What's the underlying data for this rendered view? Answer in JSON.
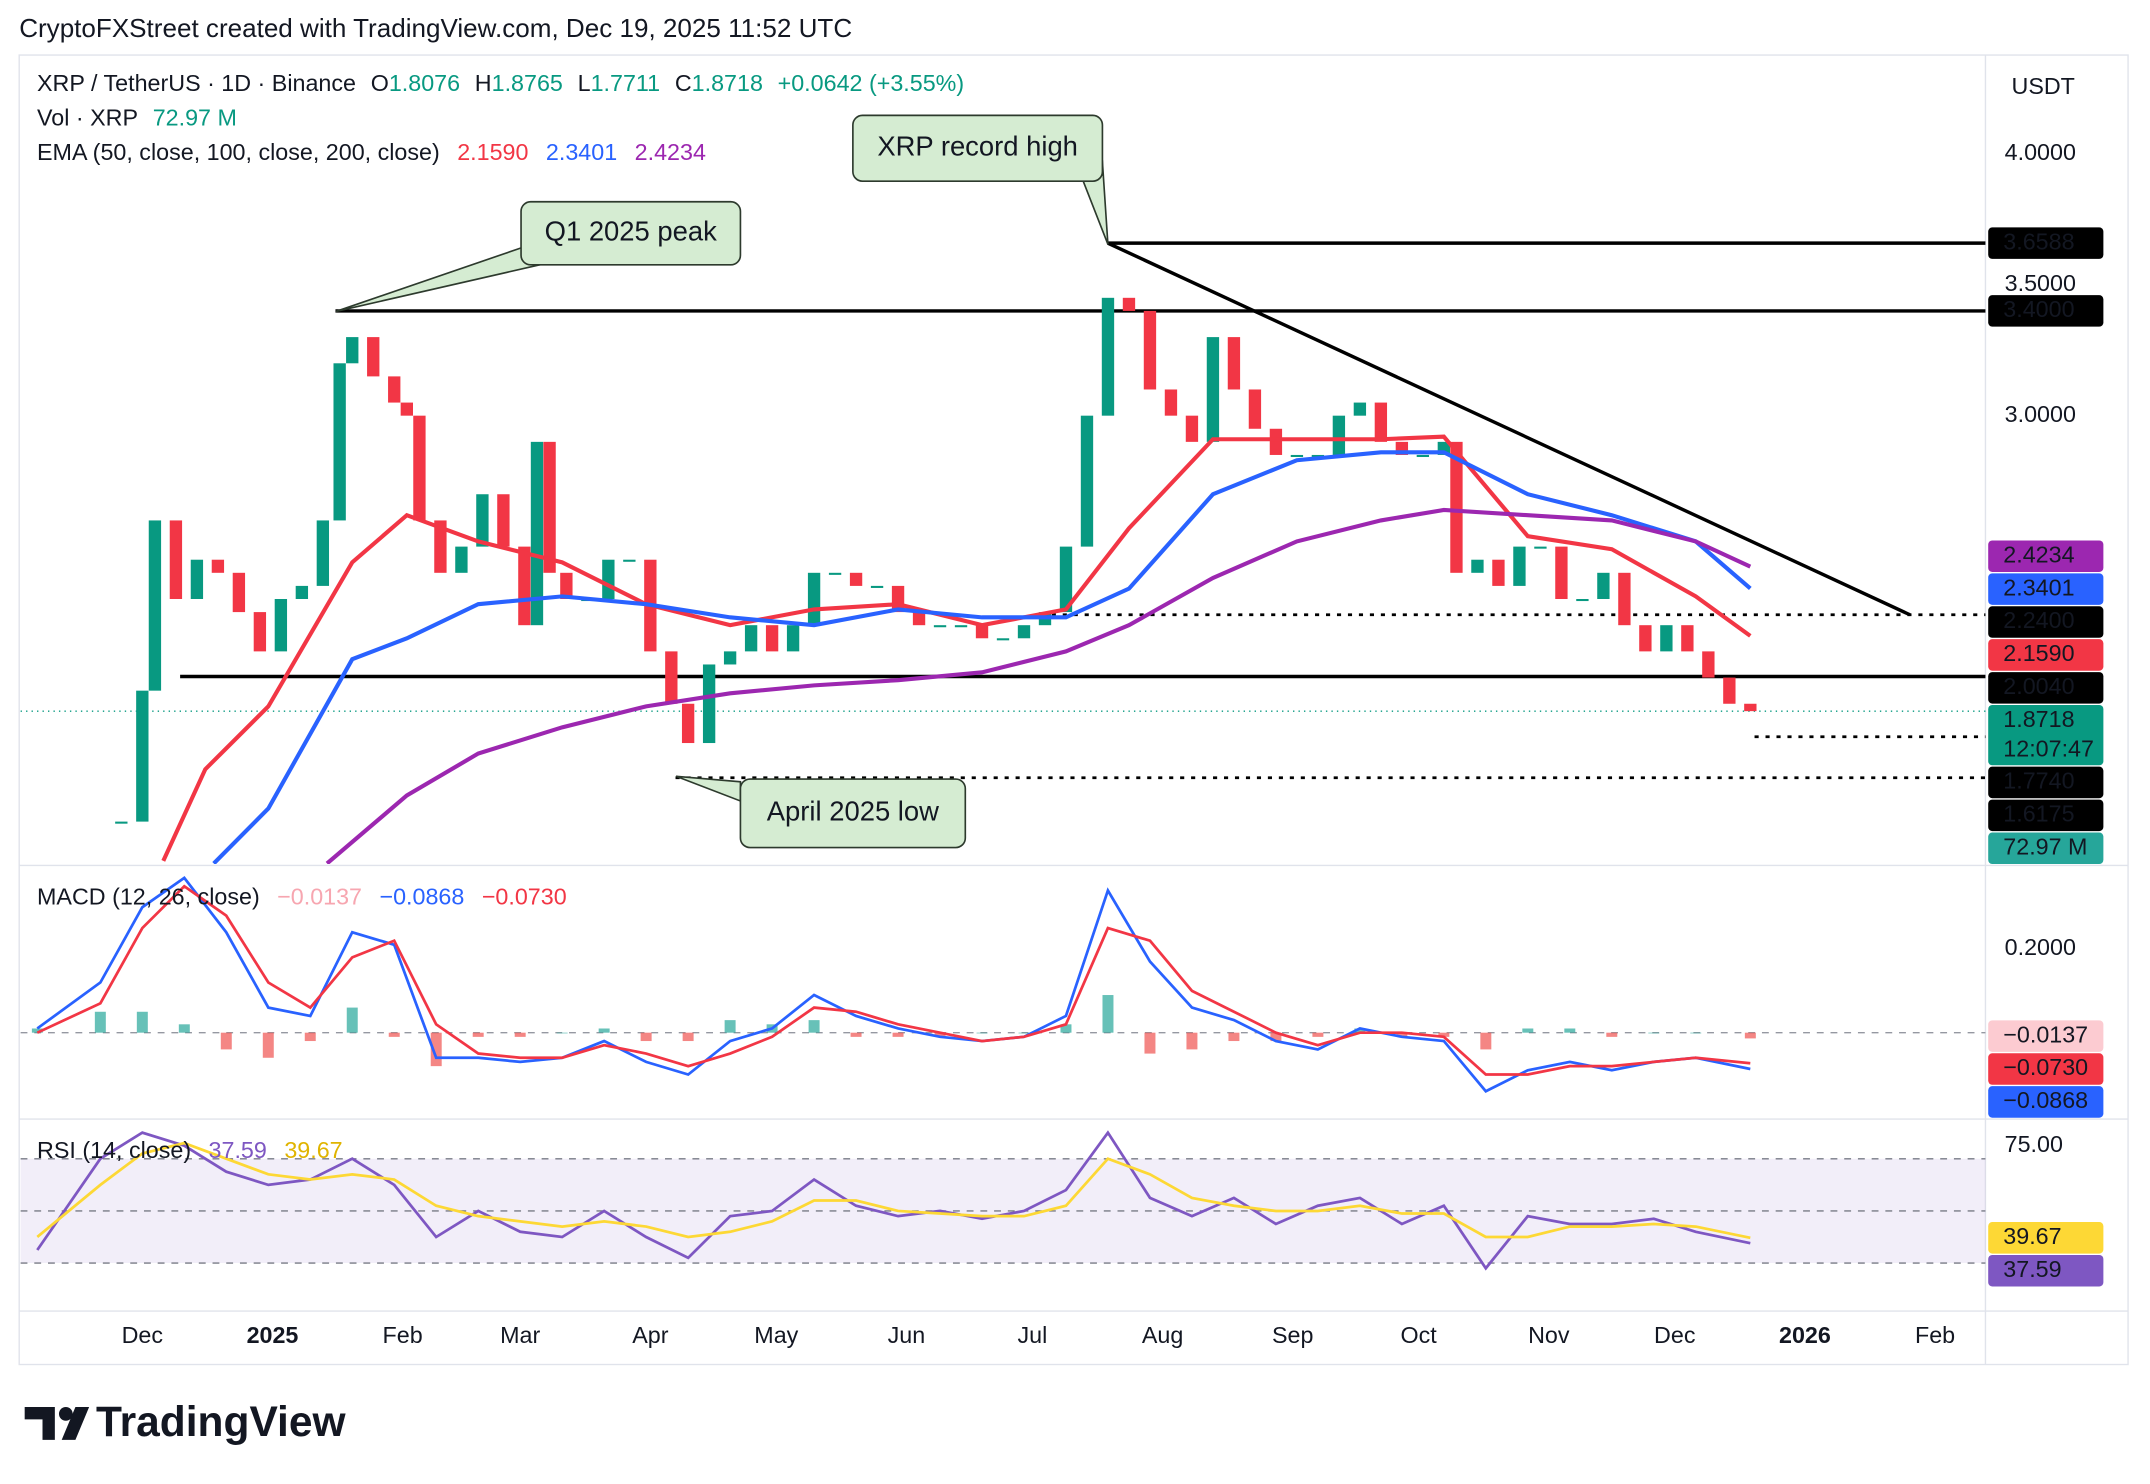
{
  "header": "CryptoFXStreet created with TradingView.com, Dec 19, 2025 11:52 UTC",
  "footer_logo": "TradingView",
  "annotations": [
    "Q1 2025 peak",
    "XRP record high",
    "April 2025 low"
  ],
  "chart_data": [
    {
      "type": "candlestick",
      "title": "XRP / TetherUS · 1D · Binance",
      "ohlc": [
        {
          "label": "O",
          "value": 1.8076
        },
        {
          "label": "H",
          "value": 1.8765
        },
        {
          "label": "L",
          "value": 1.7711
        },
        {
          "label": "C",
          "value": 1.8718
        }
      ],
      "change": {
        "value": 0.0642,
        "label": "+0.0642 (+3.55%)"
      },
      "currency": "USDT",
      "up_color": "#089981",
      "down_color": "#f23645",
      "x": [
        -5,
        0,
        3,
        8,
        13,
        18,
        23,
        28,
        33,
        38,
        43,
        47,
        50,
        55,
        60,
        63,
        66,
        71,
        76,
        81,
        86,
        91,
        94,
        97,
        101,
        106,
        111,
        116,
        121,
        126,
        130,
        135,
        140,
        145,
        150,
        155,
        160,
        165,
        170,
        175,
        180,
        185,
        190,
        195,
        200,
        205,
        210,
        215,
        220,
        225,
        230,
        235,
        240,
        245,
        250,
        255,
        260,
        265,
        270,
        275,
        280,
        285,
        290,
        295,
        300,
        305,
        310,
        313,
        318,
        323,
        328,
        333,
        338,
        343,
        348,
        353,
        358,
        363,
        368,
        373,
        378,
        383
      ],
      "close": [
        1.45,
        1.95,
        2.6,
        2.3,
        2.45,
        2.4,
        2.25,
        2.1,
        2.3,
        2.35,
        2.6,
        3.2,
        3.3,
        3.15,
        3.05,
        3.0,
        2.6,
        2.4,
        2.5,
        2.7,
        2.5,
        2.2,
        2.9,
        2.4,
        2.3,
        2.3,
        2.45,
        2.45,
        2.1,
        1.9,
        1.75,
        2.05,
        2.1,
        2.2,
        2.1,
        2.2,
        2.4,
        2.4,
        2.35,
        2.35,
        2.25,
        2.2,
        2.2,
        2.2,
        2.15,
        2.15,
        2.2,
        2.25,
        2.5,
        3.0,
        3.45,
        3.4,
        3.1,
        3.0,
        2.9,
        3.3,
        3.1,
        2.95,
        2.85,
        2.85,
        2.85,
        3.0,
        3.05,
        2.9,
        2.85,
        2.85,
        2.9,
        2.4,
        2.45,
        2.35,
        2.5,
        2.5,
        2.3,
        2.3,
        2.4,
        2.2,
        2.1,
        2.2,
        2.1,
        2.0,
        1.9,
        1.8718
      ],
      "xlim": [
        -29,
        439
      ],
      "xticks": [
        {
          "value": 0,
          "label": "Dec"
        },
        {
          "value": 31,
          "label": "2025"
        },
        {
          "value": 62,
          "label": "Feb"
        },
        {
          "value": 90,
          "label": "Mar"
        },
        {
          "value": 121,
          "label": "Apr"
        },
        {
          "value": 151,
          "label": "May"
        },
        {
          "value": 182,
          "label": "Jun"
        },
        {
          "value": 212,
          "label": "Jul"
        },
        {
          "value": 243,
          "label": "Aug"
        },
        {
          "value": 274,
          "label": "Sep"
        },
        {
          "value": 304,
          "label": "Oct"
        },
        {
          "value": 335,
          "label": "Nov"
        },
        {
          "value": 365,
          "label": "Dec"
        },
        {
          "value": 396,
          "label": "2026"
        },
        {
          "value": 427,
          "label": "Feb"
        }
      ],
      "ylim": [
        1.288,
        4.377
      ],
      "yticks": [
        {
          "value": 3,
          "label": "3.0000"
        },
        {
          "value": 3.5,
          "label": "3.5000"
        },
        {
          "value": 4,
          "label": "4.0000"
        }
      ],
      "last_price": {
        "value": 1.8718,
        "label": "1.8718"
      },
      "countdown": "12:07:47",
      "volume": {
        "name": "Vol · XRP",
        "color": "#26a69a",
        "last": {
          "value": 72.97,
          "label": "72.97 M"
        }
      },
      "ema": {
        "name": "EMA (50, close, 100, close, 200, close)",
        "series": [
          {
            "color": "#f23645",
            "x": [
              5,
              15,
              30,
              50,
              63,
              80,
              100,
              120,
              140,
              160,
              180,
              200,
              220,
              235,
              255,
              275,
              295,
              310,
              330,
              350,
              370,
              383
            ],
            "values": [
              1.3,
              1.65,
              1.89,
              2.44,
              2.62,
              2.52,
              2.44,
              2.28,
              2.2,
              2.26,
              2.28,
              2.2,
              2.26,
              2.57,
              2.91,
              2.91,
              2.91,
              2.92,
              2.54,
              2.49,
              2.31,
              2.159
            ],
            "last": {
              "value": 2.159,
              "label": "2.1590"
            }
          },
          {
            "color": "#2962ff",
            "x": [
              17,
              30,
              50,
              63,
              80,
              100,
              120,
              140,
              160,
              180,
              200,
              220,
              235,
              255,
              275,
              295,
              310,
              330,
              350,
              370,
              383
            ],
            "values": [
              1.29,
              1.5,
              2.07,
              2.15,
              2.28,
              2.31,
              2.28,
              2.23,
              2.2,
              2.26,
              2.23,
              2.23,
              2.34,
              2.7,
              2.83,
              2.86,
              2.86,
              2.7,
              2.62,
              2.52,
              2.3401
            ],
            "last": {
              "value": 2.3401,
              "label": "2.3401"
            }
          },
          {
            "color": "#9c27b0",
            "x": [
              44,
              63,
              80,
              100,
              120,
              140,
              160,
              180,
              200,
              220,
              235,
              255,
              275,
              295,
              310,
              330,
              350,
              370,
              383
            ],
            "values": [
              1.29,
              1.55,
              1.71,
              1.81,
              1.89,
              1.94,
              1.97,
              1.99,
              2.02,
              2.1,
              2.2,
              2.38,
              2.52,
              2.6,
              2.64,
              2.62,
              2.6,
              2.52,
              2.4234
            ],
            "last": {
              "value": 2.4234,
              "label": "2.4234"
            }
          }
        ]
      },
      "levels": [
        {
          "value": 3.6588,
          "label": "3.6588",
          "start": 230,
          "style": "solid"
        },
        {
          "value": 3.4,
          "label": "3.4000",
          "start": 46,
          "style": "solid"
        },
        {
          "value": 2.24,
          "label": "2.2400",
          "start": 214,
          "style": "dotted"
        },
        {
          "value": 2.004,
          "label": "2.0040",
          "start": 9,
          "style": "solid"
        },
        {
          "value": 1.774,
          "label": "1.7740",
          "start": 384,
          "style": "dotted"
        },
        {
          "value": 1.6175,
          "label": "1.6175",
          "start": 127,
          "style": "dotted"
        }
      ],
      "trendline": {
        "x": [
          230,
          421
        ],
        "values": [
          3.6588,
          2.24
        ]
      }
    },
    {
      "type": "macd",
      "name": "MACD (12, 26, close)",
      "x": [
        -25,
        -10,
        0,
        10,
        20,
        30,
        40,
        50,
        60,
        70,
        80,
        90,
        100,
        110,
        120,
        130,
        140,
        150,
        160,
        170,
        180,
        190,
        200,
        210,
        220,
        230,
        240,
        250,
        260,
        270,
        280,
        290,
        300,
        310,
        320,
        330,
        340,
        350,
        360,
        370,
        383
      ],
      "histogram": {
        "up_color": "#26a69a",
        "down_color": "#ef5350",
        "tag_color": "#fccbd1",
        "values": [
          0.01,
          0.05,
          0.05,
          0.02,
          -0.04,
          -0.06,
          -0.02,
          0.06,
          -0.01,
          -0.08,
          -0.01,
          -0.01,
          0,
          0.01,
          -0.02,
          -0.02,
          0.03,
          0.02,
          0.03,
          -0.01,
          -0.01,
          -0.01,
          0,
          0,
          0.02,
          0.09,
          -0.05,
          -0.04,
          -0.02,
          -0.02,
          -0.01,
          0.01,
          -0.01,
          -0.01,
          -0.04,
          0.01,
          0.01,
          -0.01,
          0,
          0,
          -0.0137
        ],
        "last": {
          "value": -0.0137,
          "label": "−0.0137"
        }
      },
      "series": [
        {
          "color": "#2962ff",
          "values": [
            0.01,
            0.12,
            0.3,
            0.37,
            0.24,
            0.06,
            0.04,
            0.24,
            0.21,
            -0.06,
            -0.06,
            -0.07,
            -0.06,
            -0.02,
            -0.07,
            -0.1,
            -0.02,
            0.01,
            0.09,
            0.04,
            0.01,
            -0.01,
            -0.02,
            -0.01,
            0.04,
            0.34,
            0.17,
            0.06,
            0.03,
            -0.02,
            -0.04,
            0.01,
            -0.01,
            -0.02,
            -0.14,
            -0.09,
            -0.07,
            -0.09,
            -0.07,
            -0.06,
            -0.0868
          ],
          "last": {
            "value": -0.0868,
            "label": "−0.0868"
          }
        },
        {
          "color": "#f23645",
          "values": [
            0,
            0.07,
            0.25,
            0.35,
            0.28,
            0.12,
            0.06,
            0.18,
            0.22,
            0.02,
            -0.05,
            -0.06,
            -0.06,
            -0.03,
            -0.05,
            -0.08,
            -0.05,
            -0.01,
            0.06,
            0.05,
            0.02,
            0,
            -0.02,
            -0.01,
            0.02,
            0.25,
            0.22,
            0.1,
            0.05,
            0,
            -0.03,
            0,
            0,
            -0.01,
            -0.1,
            -0.1,
            -0.08,
            -0.08,
            -0.07,
            -0.06,
            -0.073
          ],
          "last": {
            "value": -0.073,
            "label": "−0.0730"
          }
        }
      ],
      "ylim": [
        -0.2033,
        0.3967
      ],
      "yticks": [
        {
          "value": 0.2,
          "label": "0.2000"
        }
      ]
    },
    {
      "type": "rsi",
      "name": "RSI (14, close)",
      "x": [
        -25,
        -10,
        0,
        10,
        20,
        30,
        40,
        50,
        60,
        70,
        80,
        90,
        100,
        110,
        120,
        130,
        140,
        150,
        160,
        170,
        180,
        190,
        200,
        210,
        220,
        230,
        240,
        250,
        260,
        270,
        280,
        290,
        300,
        310,
        320,
        330,
        340,
        350,
        360,
        370,
        383
      ],
      "band_color": "#7e57c2",
      "bands": [
        70,
        50,
        30
      ],
      "series": [
        {
          "color": "#7e57c2",
          "text_color": "#ffffff",
          "values": [
            35,
            70,
            80,
            75,
            65,
            60,
            62,
            70,
            60,
            40,
            50,
            42,
            40,
            50,
            40,
            32,
            48,
            50,
            62,
            52,
            48,
            50,
            47,
            50,
            58,
            80,
            55,
            48,
            55,
            45,
            52,
            55,
            45,
            52,
            28,
            48,
            45,
            45,
            47,
            42,
            37.59
          ],
          "last": 37.59
        },
        {
          "color": "#fdd835",
          "text_color": "#131722",
          "values": [
            40,
            60,
            72,
            76,
            70,
            64,
            62,
            64,
            62,
            52,
            48,
            46,
            44,
            46,
            44,
            40,
            42,
            46,
            54,
            54,
            50,
            49,
            48,
            48,
            52,
            70,
            64,
            55,
            52,
            50,
            50,
            52,
            49,
            49,
            40,
            40,
            44,
            44,
            45,
            44,
            39.67
          ],
          "last": 39.67
        }
      ],
      "ylim": [
        12.1,
        84.7
      ],
      "yticks": [
        {
          "value": 75,
          "label": "75.00"
        }
      ]
    }
  ]
}
